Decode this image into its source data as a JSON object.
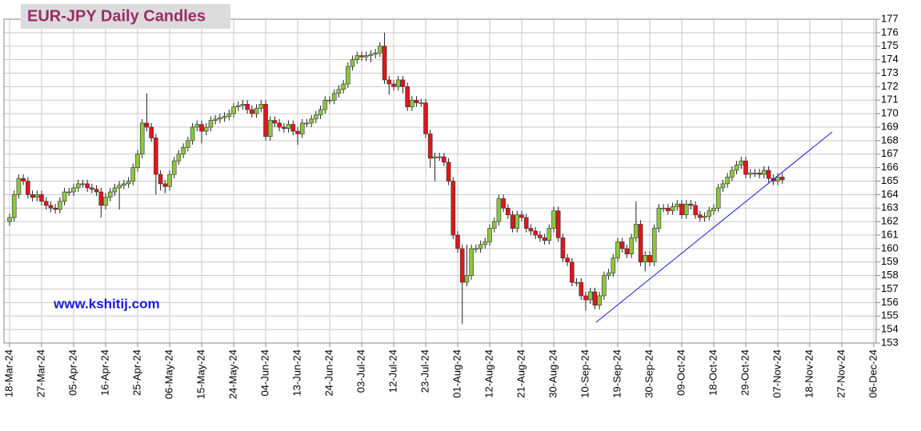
{
  "chart_data": {
    "type": "candlestick",
    "title": "EUR-JPY Daily  Candles",
    "annotations": [
      "www.kshitij.com"
    ],
    "up_color": "#8dc63f",
    "down_color": "#e3141b",
    "grid": true,
    "y_axis_side": "right",
    "ylim": [
      153,
      177
    ],
    "yticks": [
      153,
      154,
      155,
      156,
      157,
      158,
      159,
      160,
      161,
      162,
      163,
      164,
      165,
      166,
      167,
      168,
      169,
      170,
      171,
      172,
      173,
      174,
      175,
      176,
      177
    ],
    "categories": [
      "18-Mar-24",
      null,
      null,
      null,
      null,
      null,
      null,
      "27-Mar-24",
      null,
      null,
      null,
      null,
      null,
      null,
      "05-Apr-24",
      null,
      null,
      null,
      null,
      null,
      null,
      "16-Apr-24",
      null,
      null,
      null,
      null,
      null,
      null,
      "25-Apr-24",
      null,
      null,
      null,
      null,
      null,
      null,
      "06-May-24",
      null,
      null,
      null,
      null,
      null,
      null,
      "15-May-24",
      null,
      null,
      null,
      null,
      null,
      null,
      "24-May-24",
      null,
      null,
      null,
      null,
      null,
      null,
      "04-Jun-24",
      null,
      null,
      null,
      null,
      null,
      null,
      "13-Jun-24",
      null,
      null,
      null,
      null,
      null,
      null,
      "24-Jun-24",
      null,
      null,
      null,
      null,
      null,
      null,
      "03-Jul-24",
      null,
      null,
      null,
      null,
      null,
      null,
      "12-Jul-24",
      null,
      null,
      null,
      null,
      null,
      null,
      "23-Jul-24",
      null,
      null,
      null,
      null,
      null,
      null,
      "01-Aug-24",
      null,
      null,
      null,
      null,
      null,
      null,
      "12-Aug-24",
      null,
      null,
      null,
      null,
      null,
      null,
      "21-Aug-24",
      null,
      null,
      null,
      null,
      null,
      null,
      "30-Aug-24",
      null,
      null,
      null,
      null,
      null,
      null,
      "10-Sep-24",
      null,
      null,
      null,
      null,
      null,
      null,
      "19-Sep-24",
      null,
      null,
      null,
      null,
      null,
      null,
      "30-Sep-24",
      null,
      null,
      null,
      null,
      null,
      null,
      "09-Oct-24",
      null,
      null,
      null,
      null,
      null,
      null,
      "18-Oct-24",
      null,
      null,
      null,
      null,
      null,
      null,
      "29-Oct-24",
      null,
      null,
      null,
      null,
      null,
      null,
      "07-Nov-24",
      null,
      null,
      null,
      null,
      null,
      null,
      "18-Nov-24",
      null,
      null,
      null,
      null,
      null,
      null,
      "27-Nov-24",
      null,
      null,
      null,
      null,
      null,
      null,
      "06-Dec-24"
    ],
    "open": [
      162.0,
      162.3,
      164.0,
      165.2,
      165.0,
      164.0,
      163.8,
      164.0,
      163.5,
      163.2,
      163.0,
      162.9,
      163.5,
      164.2,
      164.2,
      164.5,
      164.8,
      164.8,
      164.5,
      164.4,
      164.2,
      163.2,
      163.8,
      164.2,
      164.5,
      164.7,
      164.8,
      165.0,
      166.0,
      167.0,
      169.3,
      169.0,
      168.2,
      165.5,
      164.8,
      164.6,
      165.5,
      166.5,
      167.0,
      167.5,
      168.0,
      169.0,
      169.2,
      168.7,
      169.0,
      169.5,
      169.6,
      169.7,
      169.8,
      170.0,
      170.5,
      170.6,
      170.7,
      170.3,
      170.0,
      170.4,
      170.7,
      168.3,
      169.5,
      169.3,
      169.0,
      168.9,
      169.2,
      168.7,
      168.5,
      169.3,
      169.3,
      169.6,
      169.9,
      170.3,
      171.0,
      171.0,
      171.5,
      171.8,
      172.2,
      173.5,
      174.0,
      174.3,
      174.2,
      174.3,
      174.4,
      174.5,
      175.0,
      172.5,
      172.2,
      172.0,
      172.5,
      172.0,
      170.5,
      171.0,
      170.8,
      170.8,
      168.5,
      166.7,
      166.8,
      166.8,
      166.4,
      165.0,
      161.0,
      160.0,
      157.5,
      158.0,
      160.0,
      160.0,
      160.3,
      160.5,
      161.5,
      162.0,
      163.7,
      163.0,
      162.5,
      161.5,
      162.5,
      162.3,
      161.5,
      161.3,
      161.0,
      160.8,
      160.6,
      161.5,
      162.8,
      160.8,
      159.3,
      159.0,
      157.5,
      157.5,
      156.5,
      156.2,
      156.8,
      155.8,
      156.5,
      158.0,
      158.2,
      159.3,
      160.5,
      160.0,
      159.6,
      160.8,
      161.8,
      159.0,
      159.5,
      159.0,
      161.5,
      163.0,
      163.0,
      162.8,
      163.1,
      163.3,
      162.5,
      163.3,
      163.2,
      162.5,
      162.3,
      162.4,
      162.8,
      163.0,
      164.5,
      164.8,
      165.3,
      165.8,
      166.2,
      166.5,
      165.5,
      165.6,
      165.6,
      165.5,
      165.8,
      165.2,
      165.0,
      165.3,
      null,
      null,
      null,
      null,
      null,
      null,
      null,
      null,
      null,
      null,
      null,
      null,
      null,
      null,
      null,
      null,
      null,
      null,
      null,
      null
    ],
    "high": [
      162.6,
      164.3,
      165.5,
      165.5,
      165.3,
      164.3,
      164.3,
      164.3,
      163.8,
      163.5,
      163.3,
      163.8,
      164.5,
      164.5,
      164.8,
      165.1,
      165.1,
      165.1,
      164.8,
      164.7,
      164.5,
      164.1,
      164.5,
      164.8,
      165.0,
      165.1,
      165.3,
      166.3,
      167.3,
      169.6,
      171.5,
      169.3,
      168.5,
      165.8,
      165.1,
      165.8,
      166.8,
      167.3,
      167.8,
      168.3,
      169.3,
      169.5,
      169.5,
      169.3,
      169.8,
      169.9,
      170.0,
      170.1,
      170.3,
      170.8,
      170.9,
      171.0,
      171.0,
      170.6,
      170.7,
      171.0,
      171.0,
      169.8,
      169.8,
      169.6,
      169.3,
      169.5,
      169.5,
      169.0,
      169.6,
      169.6,
      169.9,
      170.2,
      170.6,
      171.3,
      171.3,
      171.8,
      172.1,
      172.5,
      173.8,
      174.3,
      174.6,
      174.6,
      174.6,
      174.7,
      174.8,
      175.3,
      176.0,
      172.8,
      172.5,
      172.8,
      172.8,
      172.3,
      171.3,
      171.3,
      171.1,
      171.1,
      168.8,
      167.1,
      167.1,
      167.1,
      166.7,
      165.3,
      161.3,
      160.3,
      160.3,
      160.3,
      160.3,
      160.6,
      160.8,
      161.8,
      162.3,
      164.0,
      164.0,
      163.3,
      162.8,
      162.8,
      162.8,
      162.6,
      161.8,
      161.6,
      161.3,
      161.1,
      161.8,
      163.1,
      163.1,
      161.1,
      159.6,
      159.3,
      157.8,
      157.8,
      156.8,
      157.1,
      157.1,
      156.8,
      158.3,
      158.5,
      159.6,
      160.8,
      160.8,
      160.3,
      161.1,
      163.5,
      162.1,
      159.8,
      159.8,
      161.8,
      163.3,
      163.3,
      163.3,
      163.4,
      163.6,
      163.6,
      163.6,
      163.6,
      163.5,
      162.8,
      162.7,
      163.1,
      163.3,
      164.8,
      165.1,
      165.6,
      166.1,
      166.5,
      166.8,
      166.8,
      165.9,
      165.9,
      165.9,
      166.1,
      166.1,
      165.5,
      165.6,
      165.6,
      null,
      null,
      null,
      null,
      null,
      null,
      null,
      null,
      null,
      null,
      null,
      null,
      null,
      null,
      null,
      null,
      null,
      null,
      null,
      null
    ],
    "low": [
      161.7,
      162.0,
      163.7,
      164.7,
      163.7,
      163.5,
      163.5,
      163.2,
      162.9,
      162.7,
      162.6,
      162.6,
      163.2,
      163.9,
      163.9,
      164.2,
      164.5,
      164.2,
      164.1,
      163.9,
      162.3,
      162.9,
      163.5,
      163.9,
      162.9,
      164.4,
      164.5,
      164.7,
      165.7,
      166.7,
      168.7,
      167.9,
      164.0,
      164.3,
      164.1,
      164.3,
      165.2,
      166.2,
      166.7,
      167.2,
      167.7,
      168.7,
      167.8,
      168.4,
      168.7,
      169.2,
      169.3,
      169.4,
      169.5,
      169.7,
      170.2,
      170.3,
      170.0,
      169.7,
      169.7,
      170.1,
      168.0,
      168.0,
      169.0,
      168.7,
      168.6,
      168.6,
      168.4,
      167.7,
      168.2,
      169.0,
      169.0,
      169.3,
      169.6,
      170.0,
      170.7,
      170.7,
      171.2,
      171.5,
      171.9,
      173.2,
      173.7,
      173.9,
      173.9,
      173.8,
      174.1,
      174.2,
      172.2,
      171.4,
      171.7,
      171.7,
      171.5,
      170.2,
      170.2,
      170.5,
      170.5,
      168.2,
      166.0,
      165.0,
      166.5,
      166.1,
      164.7,
      160.7,
      159.7,
      154.4,
      157.2,
      157.7,
      159.7,
      159.7,
      160.0,
      160.2,
      161.2,
      161.7,
      162.7,
      162.2,
      161.2,
      161.2,
      162.0,
      161.2,
      161.0,
      160.7,
      160.5,
      160.3,
      160.3,
      161.2,
      160.5,
      159.0,
      158.7,
      157.2,
      157.2,
      156.2,
      155.4,
      155.9,
      155.5,
      155.5,
      156.2,
      157.7,
      157.9,
      159.0,
      159.7,
      159.3,
      159.3,
      160.5,
      158.7,
      158.3,
      158.7,
      158.7,
      161.2,
      162.7,
      162.5,
      162.5,
      162.8,
      162.2,
      162.2,
      162.9,
      162.2,
      162.0,
      162.0,
      162.1,
      162.5,
      162.7,
      164.2,
      164.5,
      165.0,
      165.5,
      165.9,
      165.2,
      165.2,
      165.3,
      165.2,
      165.2,
      164.9,
      164.7,
      164.7,
      164.8,
      null,
      null,
      null,
      null,
      null,
      null,
      null,
      null,
      null,
      null,
      null,
      null,
      null,
      null,
      null,
      null,
      null,
      null,
      null,
      null
    ],
    "close": [
      162.3,
      164.0,
      165.2,
      165.0,
      164.0,
      163.8,
      164.0,
      163.5,
      163.2,
      163.0,
      162.9,
      163.5,
      164.2,
      164.2,
      164.5,
      164.8,
      164.8,
      164.5,
      164.4,
      164.2,
      163.2,
      163.8,
      164.2,
      164.5,
      164.7,
      164.8,
      165.0,
      166.0,
      167.0,
      169.3,
      169.0,
      168.2,
      165.5,
      164.8,
      164.6,
      165.5,
      166.5,
      167.0,
      167.5,
      168.0,
      169.0,
      169.2,
      168.7,
      169.0,
      169.5,
      169.6,
      169.7,
      169.8,
      170.0,
      170.5,
      170.6,
      170.7,
      170.3,
      170.0,
      170.4,
      170.7,
      168.3,
      169.5,
      169.3,
      169.0,
      168.9,
      169.2,
      168.7,
      168.5,
      169.3,
      169.3,
      169.6,
      169.9,
      170.3,
      171.0,
      171.0,
      171.5,
      171.8,
      172.2,
      173.5,
      174.0,
      174.3,
      174.2,
      174.3,
      174.4,
      174.5,
      175.0,
      172.5,
      172.2,
      172.0,
      172.5,
      172.0,
      170.5,
      171.0,
      170.8,
      170.8,
      168.5,
      166.7,
      166.8,
      166.8,
      166.4,
      165.0,
      161.0,
      160.0,
      157.5,
      158.0,
      160.0,
      160.0,
      160.3,
      160.5,
      161.5,
      162.0,
      163.7,
      163.0,
      162.5,
      161.5,
      162.5,
      162.3,
      161.5,
      161.3,
      161.0,
      160.8,
      160.6,
      161.5,
      162.8,
      160.8,
      159.3,
      159.0,
      157.5,
      157.5,
      156.5,
      156.2,
      156.8,
      155.8,
      156.5,
      158.0,
      158.2,
      159.3,
      160.5,
      160.0,
      159.6,
      160.8,
      161.8,
      159.0,
      159.5,
      159.0,
      161.5,
      163.0,
      163.0,
      162.8,
      163.1,
      163.3,
      162.5,
      163.3,
      163.2,
      162.5,
      162.3,
      162.4,
      162.8,
      163.0,
      164.5,
      164.8,
      165.3,
      165.8,
      166.2,
      166.5,
      165.5,
      165.6,
      165.6,
      165.5,
      165.8,
      165.2,
      165.0,
      165.3,
      165.1,
      null,
      null,
      null,
      null,
      null,
      null,
      null,
      null,
      null,
      null,
      null,
      null,
      null,
      null,
      null,
      null,
      null,
      null,
      null,
      null
    ]
  }
}
